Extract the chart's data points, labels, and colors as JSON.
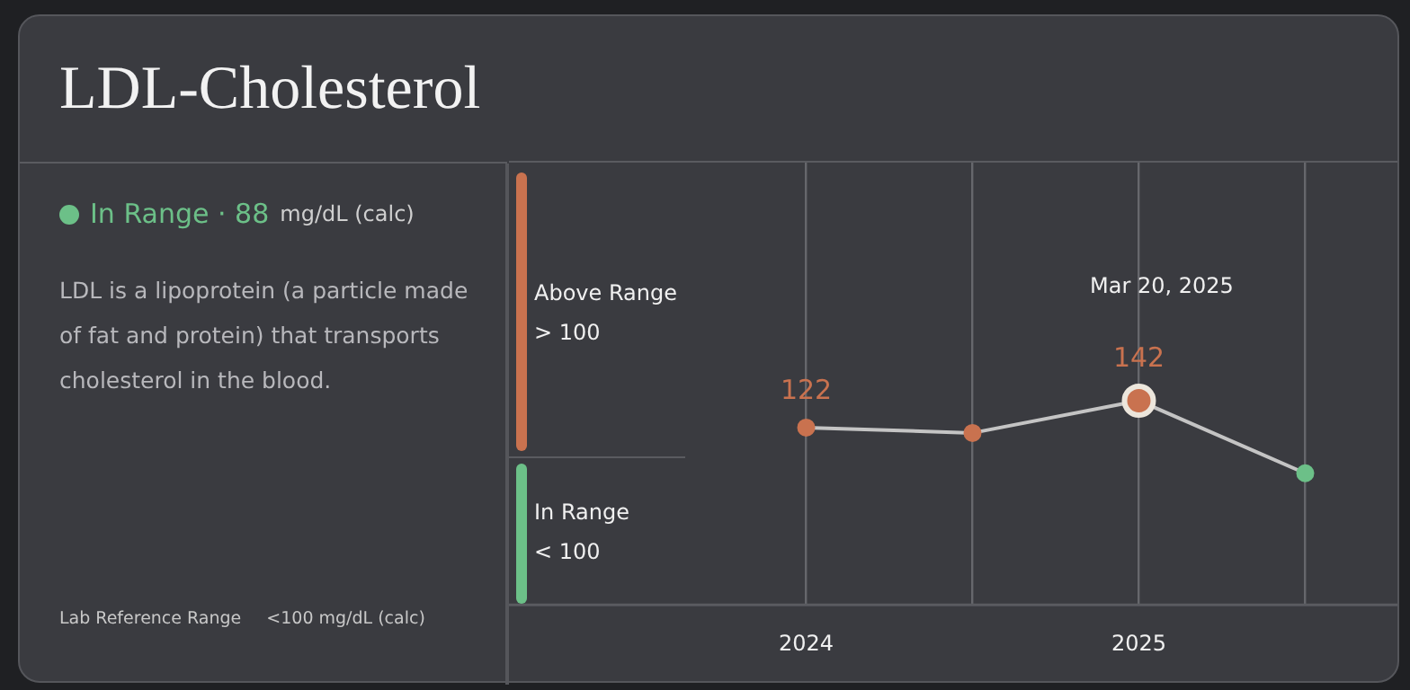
{
  "chart_data": {
    "type": "line",
    "title": "LDL-Cholesterol",
    "categories": [
      "2024",
      null,
      "2025",
      null
    ],
    "series": [
      {
        "color": "#c4c4c4",
        "colors": [
          "#c9724f",
          "#c9724f",
          "#c9724f",
          "#6cc088"
        ],
        "values": [
          122,
          118,
          142,
          88
        ],
        "value_labels": [
          "122",
          null,
          "142",
          null
        ]
      }
    ],
    "ylim": [
      -10,
      320
    ],
    "tick_labels": "x",
    "grid": "x",
    "legend": false,
    "marker": "circle",
    "line_style": "solid",
    "annotations": [
      "Mar 20, 2025",
      "In Range · 88",
      "mg/dL (calc)",
      "LDL is a lipoprotein (a particle made of fat and protein) that transports cholesterol in the blood.",
      "Lab Reference Range",
      "<100 mg/dL (calc)",
      "Above Range",
      "> 100",
      "In Range",
      "< 100"
    ]
  }
}
